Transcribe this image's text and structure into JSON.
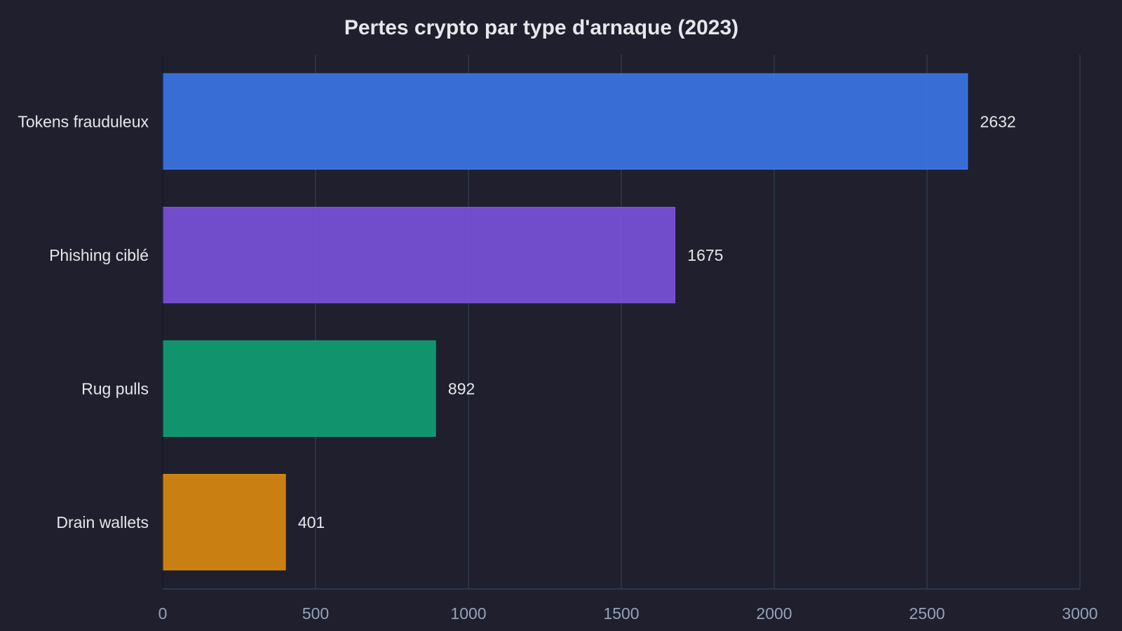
{
  "chart_data": {
    "type": "bar",
    "orientation": "horizontal",
    "title": "Pertes crypto par type d'arnaque (2023)",
    "xlabel": "",
    "ylabel": "",
    "categories": [
      "Tokens frauduleux",
      "Phishing ciblé",
      "Rug pulls",
      "Drain wallets"
    ],
    "values": [
      2632,
      1675,
      892,
      401
    ],
    "colors": [
      "#3b76e8",
      "#7b52dd",
      "#10a075",
      "#dc8a0f"
    ],
    "xlim": [
      0,
      3000
    ],
    "xticks": [
      0,
      500,
      1000,
      1500,
      2000,
      2500,
      3000
    ],
    "xtick_labels": [
      "0",
      "500",
      "1000",
      "1500",
      "2000",
      "2500",
      "3000"
    ],
    "value_labels": [
      "2632",
      "1675",
      "892",
      "401"
    ],
    "grid": "vertical",
    "legend": "none"
  },
  "theme": {
    "background": "#1f1f2e",
    "grid_color": "#334155",
    "text_color": "#e5e7eb",
    "tick_color": "#94a3b8"
  }
}
